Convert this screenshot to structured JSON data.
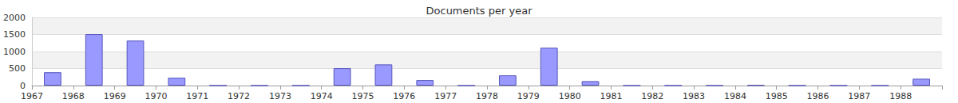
{
  "chart_data": {
    "type": "bar",
    "title": "Documents per year",
    "categories": [
      "1967",
      "1968",
      "1969",
      "1970",
      "1971",
      "1972",
      "1973",
      "1974",
      "1975",
      "1976",
      "1977",
      "1978",
      "1979",
      "1980",
      "1981",
      "1982",
      "1983",
      "1984",
      "1985",
      "1986",
      "1987",
      "1988"
    ],
    "values": [
      390,
      1510,
      1320,
      230,
      0,
      0,
      0,
      510,
      620,
      160,
      0,
      300,
      1110,
      130,
      0,
      0,
      0,
      15,
      0,
      0,
      0,
      200
    ],
    "color": "#9999ff",
    "ylim": [
      0,
      2000
    ],
    "yticks": [
      0,
      500,
      1000,
      1500,
      2000
    ],
    "grid": true
  }
}
